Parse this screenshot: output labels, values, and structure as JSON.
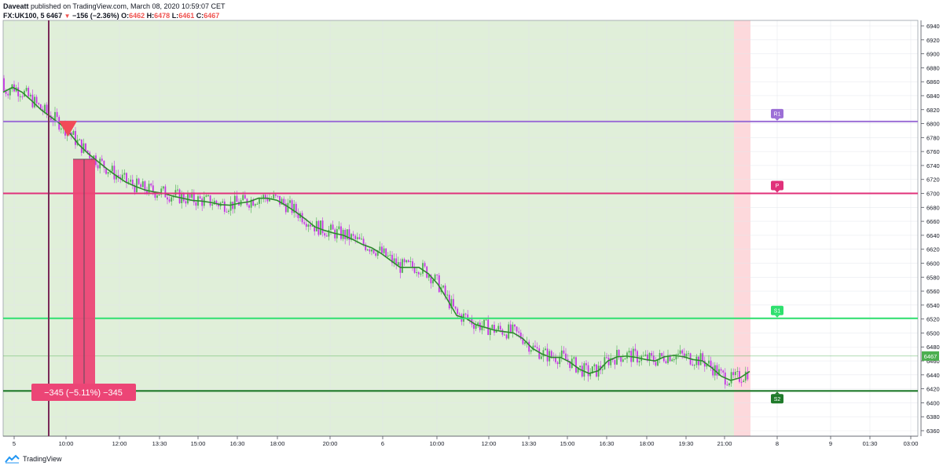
{
  "header": {
    "publisher": "Daveatt",
    "published_text": "published on TradingView.com, March 08, 2020 10:59:07 CET",
    "symbol": "FX:UK100, 5",
    "last": "6467",
    "change": "−156 (−2.36%)",
    "o_label": "O:",
    "o_value": "6462",
    "h_label": "H:",
    "h_value": "6478",
    "l_label": "L:",
    "l_value": "6461",
    "c_label": "C:",
    "c_value": "6467"
  },
  "footer": {
    "brand": "TradingView",
    "logo_icon": "tradingview-logo-icon"
  },
  "colors": {
    "bg_green": "#e0efd9",
    "bg_red": "#fdd9dc",
    "r1": "#9c6fd6",
    "pivot": "#e0317a",
    "s1": "#2ee06e",
    "s2": "#1f7a2a",
    "ema": "#2e8b2e",
    "bull": "#4caf50",
    "bear": "#c535e4",
    "measure": "#ec4576",
    "vline": "#7a2a58",
    "price_tag": "#4caf50"
  },
  "chart_data": {
    "type": "candlestick",
    "symbol": "FX:UK100",
    "interval": "5",
    "ylim": [
      6352,
      6948
    ],
    "y_ticks": [
      6360,
      6380,
      6400,
      6420,
      6440,
      6460,
      6480,
      6500,
      6520,
      6540,
      6560,
      6580,
      6600,
      6620,
      6640,
      6660,
      6680,
      6700,
      6720,
      6740,
      6760,
      6780,
      6800,
      6820,
      6840,
      6860,
      6880,
      6900,
      6920,
      6940
    ],
    "x_ticks": [
      "5",
      "10:00",
      "12:00",
      "13:30",
      "15:00",
      "16:30",
      "18:00",
      "20:00",
      "6",
      "10:00",
      "12:00",
      "13:30",
      "15:00",
      "16:30",
      "18:00",
      "19:30",
      "21:00",
      "8",
      "9",
      "01:30",
      "03:00"
    ],
    "levels": [
      {
        "name": "R1",
        "value": 6803
      },
      {
        "name": "P",
        "value": 6700
      },
      {
        "name": "S1",
        "value": 6521
      },
      {
        "name": "S2",
        "value": 6417
      }
    ],
    "current_price": 6467,
    "ema_trace": [
      6845,
      6852,
      6845,
      6833,
      6820,
      6810,
      6800,
      6787,
      6770,
      6757,
      6746,
      6735,
      6725,
      6716,
      6710,
      6705,
      6702,
      6700,
      6696,
      6693,
      6690,
      6689,
      6687,
      6684,
      6683,
      6686,
      6688,
      6693,
      6693,
      6690,
      6682,
      6673,
      6663,
      6652,
      6647,
      6643,
      6640,
      6634,
      6627,
      6622,
      6614,
      6604,
      6594,
      6594,
      6594,
      6585,
      6570,
      6548,
      6525,
      6521,
      6512,
      6508,
      6504,
      6502,
      6500,
      6492,
      6478,
      6470,
      6465,
      6465,
      6458,
      6448,
      6442,
      6446,
      6460,
      6466,
      6467,
      6465,
      6462,
      6460,
      6466,
      6468,
      6466,
      6462,
      6460,
      6450,
      6438,
      6432,
      6436,
      6445
    ],
    "measure": {
      "text": "−345 (−5.11%) −345",
      "start": 6749,
      "end": 6404
    },
    "signal": {
      "type": "sell",
      "price": 6796
    }
  }
}
